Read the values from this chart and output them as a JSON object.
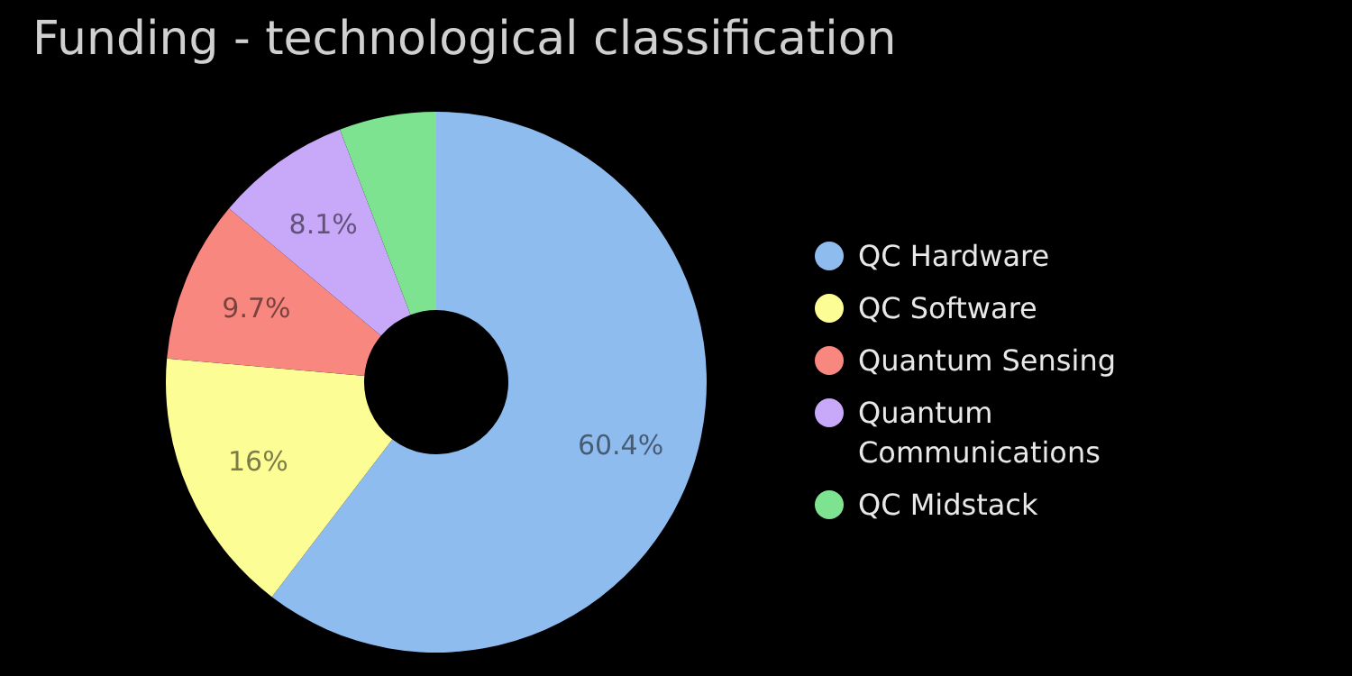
{
  "chart_data": {
    "type": "donut",
    "title": "Funding - technological classification",
    "categories": [
      "QC Hardware",
      "QC Software",
      "Quantum Sensing",
      "Quantum Communications",
      "QC Midstack"
    ],
    "values": [
      60.4,
      16,
      9.7,
      8.1,
      5.8
    ],
    "value_labels": [
      "60.4%",
      "16%",
      "9.7%",
      "8.1%",
      null
    ],
    "colors": [
      "#8fbcef",
      "#fdfd96",
      "#f8877f",
      "#c8a8f8",
      "#7ee391"
    ],
    "legend": "right"
  }
}
